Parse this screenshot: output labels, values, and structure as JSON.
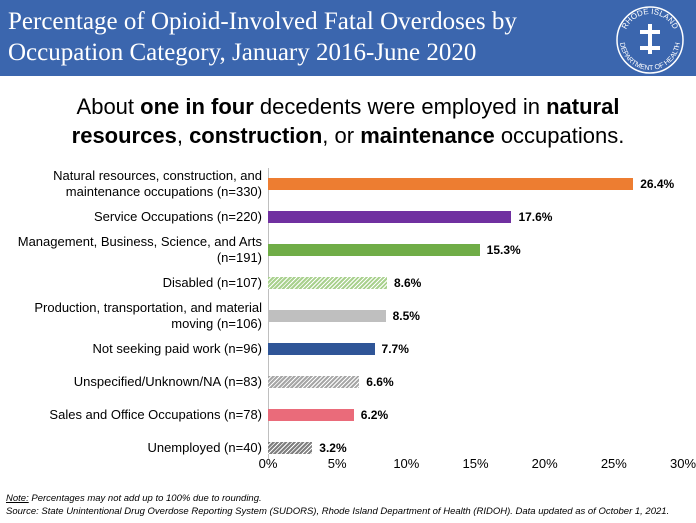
{
  "chart_data": {
    "type": "bar",
    "orientation": "horizontal",
    "title": "Percentage of Opioid-Involved Fatal Overdoses by Occupation Category, January 2016-June 2020",
    "logo": {
      "top": "RHODE ISLAND",
      "bottom": "DEPARTMENT OF HEALTH"
    },
    "subtitle": [
      {
        "text": "About ",
        "bold": false
      },
      {
        "text": "one in four",
        "bold": true
      },
      {
        "text": " decedents were employed in ",
        "bold": false
      },
      {
        "text": "natural resources",
        "bold": true
      },
      {
        "text": ", ",
        "bold": false
      },
      {
        "text": "construction",
        "bold": true
      },
      {
        "text": ", or ",
        "bold": false
      },
      {
        "text": "maintenance",
        "bold": true
      },
      {
        "text": " occupations.",
        "bold": false
      }
    ],
    "categories": [
      "Natural resources, construction, and maintenance occupations (n=330)",
      "Service Occupations (n=220)",
      "Management, Business, Science, and Arts (n=191)",
      "Disabled (n=107)",
      "Production, transportation, and material moving (n=106)",
      "Not seeking paid work (n=96)",
      "Unspecified/Unknown/NA (n=83)",
      "Sales and Office Occupations (n=78)",
      "Unemployed (n=40)"
    ],
    "values": [
      26.4,
      17.6,
      15.3,
      8.6,
      8.5,
      7.7,
      6.6,
      6.2,
      3.2
    ],
    "value_labels": [
      "26.4%",
      "17.6%",
      "15.3%",
      "8.6%",
      "8.5%",
      "7.7%",
      "6.6%",
      "6.2%",
      "3.2%"
    ],
    "colors": [
      "#ed7d31",
      "#7030a0",
      "#70ad47",
      "#a9d18e",
      "#bfbfbf",
      "#2f5597",
      "#a6a6a6",
      "#ea6b7a",
      "#7f7f7f"
    ],
    "hatched": [
      false,
      false,
      false,
      true,
      false,
      false,
      true,
      false,
      true
    ],
    "xlim": [
      0,
      30
    ],
    "xticks": [
      {
        "value": 0,
        "label": "0%"
      },
      {
        "value": 5,
        "label": "5%"
      },
      {
        "value": 10,
        "label": "10%"
      },
      {
        "value": 15,
        "label": "15%"
      },
      {
        "value": 20,
        "label": "20%"
      },
      {
        "value": 25,
        "label": "25%"
      },
      {
        "value": 30,
        "label": "30%"
      }
    ],
    "note_label": "Note:",
    "note": " Percentages may not add up to 100% due to rounding.",
    "source": "Source: State Unintentional Drug Overdose Reporting System (SUDORS), Rhode Island Department of Health (RIDOH). Data updated as of October 1, 2021."
  }
}
